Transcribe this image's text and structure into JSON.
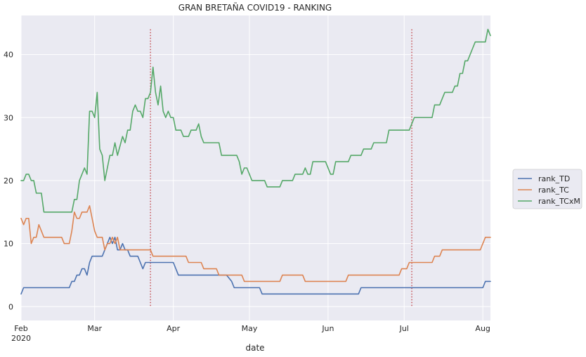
{
  "chart_data": {
    "type": "line",
    "title": "GRAN BRETAÑA COVID19 - RANKING",
    "xlabel": "date",
    "ylabel": "",
    "x_range": [
      "2020-02-01",
      "2020-08-04"
    ],
    "ylim": [
      -2.2,
      46.2
    ],
    "grid": true,
    "legend_position": "right",
    "x_ticks": [
      {
        "date": "2020-02-01",
        "label": "Feb",
        "sublabel": "2020"
      },
      {
        "date": "2020-03-01",
        "label": "Mar"
      },
      {
        "date": "2020-04-01",
        "label": "Apr"
      },
      {
        "date": "2020-05-01",
        "label": "May"
      },
      {
        "date": "2020-06-01",
        "label": "Jun"
      },
      {
        "date": "2020-07-01",
        "label": "Jul"
      },
      {
        "date": "2020-08-01",
        "label": "Aug"
      }
    ],
    "y_ticks": [
      0,
      10,
      20,
      30,
      40
    ],
    "vlines": [
      {
        "date": "2020-03-23",
        "y0": 0,
        "y1": 44,
        "color": "#c44e52",
        "style": "dotted"
      },
      {
        "date": "2020-07-04",
        "y0": 0,
        "y1": 44,
        "color": "#c44e52",
        "style": "dotted"
      }
    ],
    "series": [
      {
        "name": "rank_TD",
        "color": "#4c72b0",
        "points": [
          [
            "2020-02-01",
            2
          ],
          [
            "2020-02-02",
            3
          ],
          [
            "2020-02-20",
            3
          ],
          [
            "2020-02-21",
            4
          ],
          [
            "2020-02-22",
            4
          ],
          [
            "2020-02-23",
            5
          ],
          [
            "2020-02-24",
            5
          ],
          [
            "2020-02-25",
            6
          ],
          [
            "2020-02-26",
            6
          ],
          [
            "2020-02-27",
            5
          ],
          [
            "2020-02-28",
            7
          ],
          [
            "2020-02-29",
            8
          ],
          [
            "2020-03-04",
            8
          ],
          [
            "2020-03-06",
            10
          ],
          [
            "2020-03-07",
            11
          ],
          [
            "2020-03-08",
            10
          ],
          [
            "2020-03-09",
            11
          ],
          [
            "2020-03-10",
            9
          ],
          [
            "2020-03-11",
            9
          ],
          [
            "2020-03-12",
            10
          ],
          [
            "2020-03-13",
            9
          ],
          [
            "2020-03-14",
            9
          ],
          [
            "2020-03-15",
            8
          ],
          [
            "2020-03-18",
            8
          ],
          [
            "2020-03-19",
            7
          ],
          [
            "2020-03-20",
            6
          ],
          [
            "2020-03-21",
            7
          ],
          [
            "2020-04-01",
            7
          ],
          [
            "2020-04-02",
            6
          ],
          [
            "2020-04-03",
            5
          ],
          [
            "2020-04-22",
            5
          ],
          [
            "2020-04-24",
            4
          ],
          [
            "2020-04-25",
            3
          ],
          [
            "2020-05-05",
            3
          ],
          [
            "2020-05-06",
            2
          ],
          [
            "2020-06-13",
            2
          ],
          [
            "2020-06-14",
            3
          ],
          [
            "2020-08-01",
            3
          ],
          [
            "2020-08-02",
            4
          ],
          [
            "2020-08-04",
            4
          ]
        ]
      },
      {
        "name": "rank_TC",
        "color": "#dd8452",
        "points": [
          [
            "2020-02-01",
            14
          ],
          [
            "2020-02-02",
            13
          ],
          [
            "2020-02-03",
            14
          ],
          [
            "2020-02-04",
            14
          ],
          [
            "2020-02-05",
            10
          ],
          [
            "2020-02-06",
            11
          ],
          [
            "2020-02-07",
            11
          ],
          [
            "2020-02-08",
            13
          ],
          [
            "2020-02-09",
            12
          ],
          [
            "2020-02-10",
            11
          ],
          [
            "2020-02-17",
            11
          ],
          [
            "2020-02-18",
            10
          ],
          [
            "2020-02-20",
            10
          ],
          [
            "2020-02-21",
            12
          ],
          [
            "2020-02-22",
            15
          ],
          [
            "2020-02-23",
            14
          ],
          [
            "2020-02-24",
            14
          ],
          [
            "2020-02-25",
            15
          ],
          [
            "2020-02-27",
            15
          ],
          [
            "2020-02-28",
            16
          ],
          [
            "2020-02-29",
            14
          ],
          [
            "2020-03-01",
            12
          ],
          [
            "2020-03-02",
            11
          ],
          [
            "2020-03-04",
            11
          ],
          [
            "2020-03-05",
            9
          ],
          [
            "2020-03-06",
            10
          ],
          [
            "2020-03-07",
            10
          ],
          [
            "2020-03-08",
            11
          ],
          [
            "2020-03-09",
            10
          ],
          [
            "2020-03-10",
            11
          ],
          [
            "2020-03-11",
            9
          ],
          [
            "2020-03-23",
            9
          ],
          [
            "2020-03-24",
            8
          ],
          [
            "2020-04-06",
            8
          ],
          [
            "2020-04-07",
            7
          ],
          [
            "2020-04-12",
            7
          ],
          [
            "2020-04-13",
            6
          ],
          [
            "2020-04-18",
            6
          ],
          [
            "2020-04-19",
            5
          ],
          [
            "2020-04-28",
            5
          ],
          [
            "2020-04-29",
            4
          ],
          [
            "2020-05-13",
            4
          ],
          [
            "2020-05-14",
            5
          ],
          [
            "2020-05-22",
            5
          ],
          [
            "2020-05-23",
            4
          ],
          [
            "2020-06-08",
            4
          ],
          [
            "2020-06-09",
            5
          ],
          [
            "2020-06-29",
            5
          ],
          [
            "2020-06-30",
            6
          ],
          [
            "2020-07-02",
            6
          ],
          [
            "2020-07-03",
            7
          ],
          [
            "2020-07-12",
            7
          ],
          [
            "2020-07-13",
            8
          ],
          [
            "2020-07-15",
            8
          ],
          [
            "2020-07-16",
            9
          ],
          [
            "2020-07-31",
            9
          ],
          [
            "2020-08-01",
            10
          ],
          [
            "2020-08-02",
            11
          ],
          [
            "2020-08-04",
            11
          ]
        ]
      },
      {
        "name": "rank_TCxM",
        "color": "#55a868",
        "points": [
          [
            "2020-02-01",
            20
          ],
          [
            "2020-02-02",
            20
          ],
          [
            "2020-02-03",
            21
          ],
          [
            "2020-02-04",
            21
          ],
          [
            "2020-02-05",
            20
          ],
          [
            "2020-02-06",
            20
          ],
          [
            "2020-02-07",
            18
          ],
          [
            "2020-02-09",
            18
          ],
          [
            "2020-02-10",
            15
          ],
          [
            "2020-02-21",
            15
          ],
          [
            "2020-02-22",
            17
          ],
          [
            "2020-02-23",
            17
          ],
          [
            "2020-02-24",
            20
          ],
          [
            "2020-02-26",
            22
          ],
          [
            "2020-02-27",
            21
          ],
          [
            "2020-02-28",
            31
          ],
          [
            "2020-02-29",
            31
          ],
          [
            "2020-03-01",
            30
          ],
          [
            "2020-03-02",
            34
          ],
          [
            "2020-03-03",
            25
          ],
          [
            "2020-03-04",
            24
          ],
          [
            "2020-03-05",
            20
          ],
          [
            "2020-03-07",
            24
          ],
          [
            "2020-03-08",
            24
          ],
          [
            "2020-03-09",
            26
          ],
          [
            "2020-03-10",
            24
          ],
          [
            "2020-03-12",
            27
          ],
          [
            "2020-03-13",
            26
          ],
          [
            "2020-03-14",
            28
          ],
          [
            "2020-03-15",
            28
          ],
          [
            "2020-03-16",
            31
          ],
          [
            "2020-03-17",
            32
          ],
          [
            "2020-03-18",
            31
          ],
          [
            "2020-03-19",
            31
          ],
          [
            "2020-03-20",
            30
          ],
          [
            "2020-03-21",
            33
          ],
          [
            "2020-03-22",
            33
          ],
          [
            "2020-03-23",
            34
          ],
          [
            "2020-03-24",
            38
          ],
          [
            "2020-03-25",
            34
          ],
          [
            "2020-03-26",
            32
          ],
          [
            "2020-03-27",
            35
          ],
          [
            "2020-03-28",
            31
          ],
          [
            "2020-03-29",
            30
          ],
          [
            "2020-03-30",
            31
          ],
          [
            "2020-03-31",
            30
          ],
          [
            "2020-04-01",
            30
          ],
          [
            "2020-04-02",
            28
          ],
          [
            "2020-04-04",
            28
          ],
          [
            "2020-04-05",
            27
          ],
          [
            "2020-04-07",
            27
          ],
          [
            "2020-04-08",
            28
          ],
          [
            "2020-04-10",
            28
          ],
          [
            "2020-04-11",
            29
          ],
          [
            "2020-04-12",
            27
          ],
          [
            "2020-04-13",
            26
          ],
          [
            "2020-04-19",
            26
          ],
          [
            "2020-04-20",
            24
          ],
          [
            "2020-04-26",
            24
          ],
          [
            "2020-04-27",
            23
          ],
          [
            "2020-04-28",
            21
          ],
          [
            "2020-04-29",
            22
          ],
          [
            "2020-04-30",
            22
          ],
          [
            "2020-05-02",
            20
          ],
          [
            "2020-05-07",
            20
          ],
          [
            "2020-05-08",
            19
          ],
          [
            "2020-05-13",
            19
          ],
          [
            "2020-05-14",
            20
          ],
          [
            "2020-05-18",
            20
          ],
          [
            "2020-05-19",
            21
          ],
          [
            "2020-05-22",
            21
          ],
          [
            "2020-05-23",
            22
          ],
          [
            "2020-05-24",
            21
          ],
          [
            "2020-05-25",
            21
          ],
          [
            "2020-05-26",
            23
          ],
          [
            "2020-05-31",
            23
          ],
          [
            "2020-06-02",
            21
          ],
          [
            "2020-06-03",
            21
          ],
          [
            "2020-06-04",
            23
          ],
          [
            "2020-06-09",
            23
          ],
          [
            "2020-06-10",
            24
          ],
          [
            "2020-06-14",
            24
          ],
          [
            "2020-06-15",
            25
          ],
          [
            "2020-06-18",
            25
          ],
          [
            "2020-06-19",
            26
          ],
          [
            "2020-06-24",
            26
          ],
          [
            "2020-06-25",
            28
          ],
          [
            "2020-07-03",
            28
          ],
          [
            "2020-07-04",
            29
          ],
          [
            "2020-07-05",
            30
          ],
          [
            "2020-07-12",
            30
          ],
          [
            "2020-07-13",
            32
          ],
          [
            "2020-07-15",
            32
          ],
          [
            "2020-07-16",
            33
          ],
          [
            "2020-07-17",
            34
          ],
          [
            "2020-07-20",
            34
          ],
          [
            "2020-07-21",
            35
          ],
          [
            "2020-07-22",
            35
          ],
          [
            "2020-07-23",
            37
          ],
          [
            "2020-07-24",
            37
          ],
          [
            "2020-07-25",
            39
          ],
          [
            "2020-07-26",
            39
          ],
          [
            "2020-07-27",
            40
          ],
          [
            "2020-07-28",
            41
          ],
          [
            "2020-07-29",
            42
          ],
          [
            "2020-08-01",
            42
          ],
          [
            "2020-08-02",
            42
          ],
          [
            "2020-08-03",
            44
          ],
          [
            "2020-08-04",
            43
          ]
        ]
      }
    ]
  }
}
